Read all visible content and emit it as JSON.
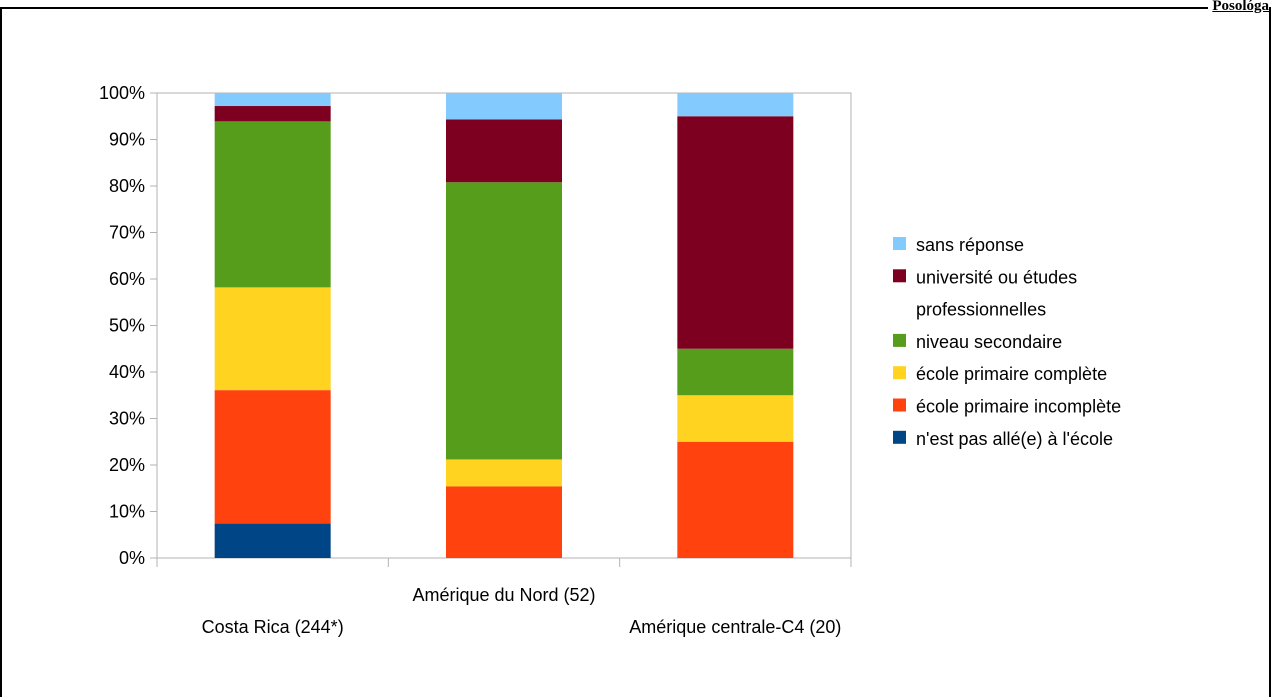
{
  "page": {
    "corner_label": "Posológa"
  },
  "chart_data": {
    "type": "bar",
    "stacked": true,
    "normalized_percent": true,
    "categories": [
      "Costa Rica (244*)",
      "Amérique du Nord (52)",
      "Amérique centrale-C4 (20)"
    ],
    "ylim": [
      0,
      100
    ],
    "yticks": [
      "0%",
      "10%",
      "20%",
      "30%",
      "40%",
      "50%",
      "60%",
      "70%",
      "80%",
      "90%",
      "100%"
    ],
    "grid": false,
    "legend_position": "right",
    "series": [
      {
        "name": "n'est pas allé(e) à l'école",
        "color": "#004586",
        "values": [
          7.4,
          0,
          0
        ]
      },
      {
        "name": "école primaire incomplète",
        "color": "#ff420e",
        "values": [
          28.7,
          15.4,
          25
        ]
      },
      {
        "name": "école primaire complète",
        "color": "#ffd320",
        "values": [
          22.1,
          5.8,
          10
        ]
      },
      {
        "name": "niveau secondaire",
        "color": "#579d1c",
        "values": [
          35.7,
          59.6,
          10
        ]
      },
      {
        "name": "université ou études professionnelles",
        "color": "#7e0021",
        "values": [
          3.3,
          13.5,
          50
        ]
      },
      {
        "name": "sans réponse",
        "color": "#83caff",
        "values": [
          2.8,
          5.7,
          5
        ]
      }
    ],
    "legend": {
      "order": [
        5,
        4,
        3,
        2,
        1,
        0
      ],
      "lines": {
        "4": [
          "université ou études",
          "professionnelles"
        ]
      }
    }
  }
}
